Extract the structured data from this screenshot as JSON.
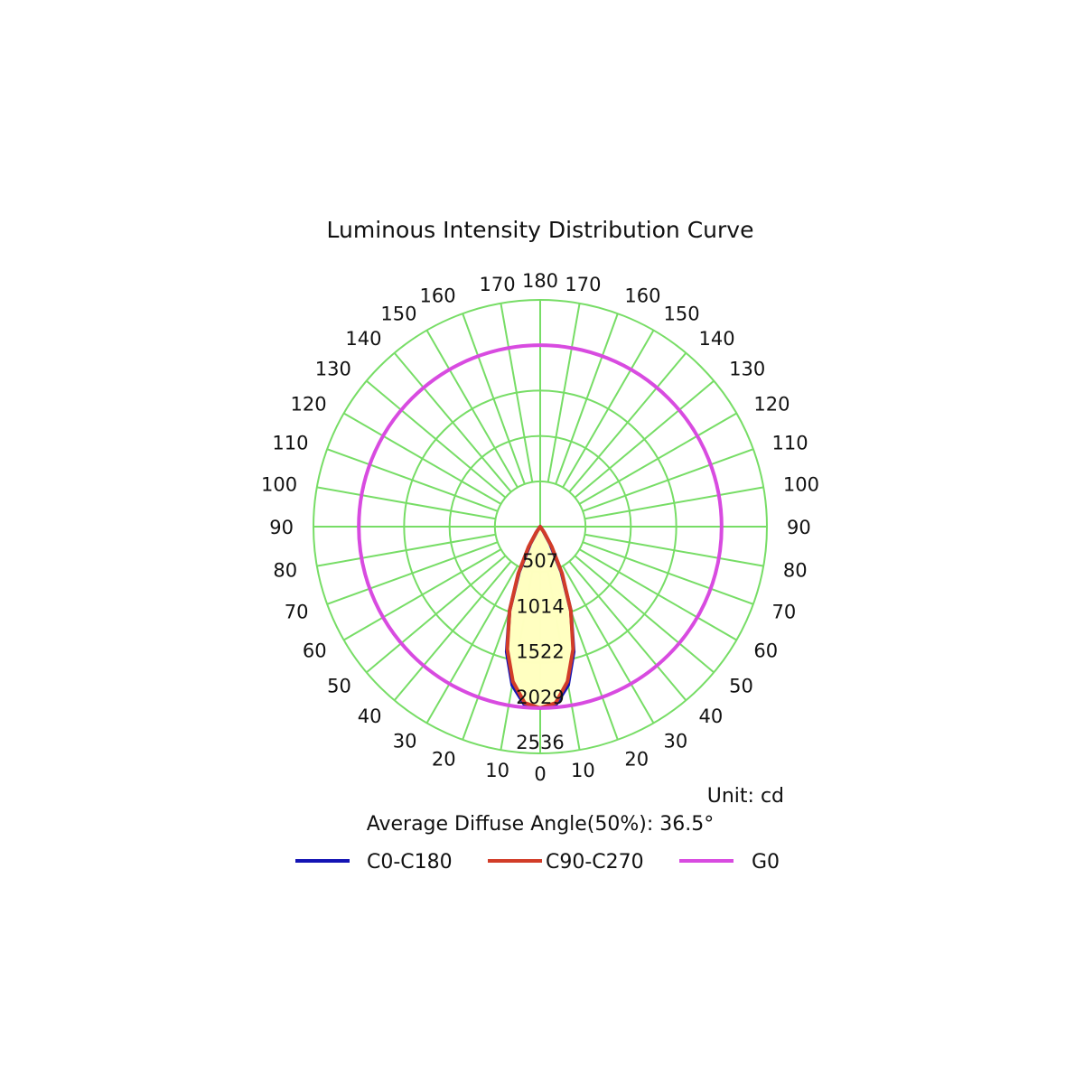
{
  "chart_data": {
    "type": "polar",
    "title": "Luminous Intensity Distribution Curve",
    "angles_left": [
      "0",
      "10",
      "20",
      "30",
      "40",
      "50",
      "60",
      "70",
      "80",
      "90",
      "100",
      "110",
      "120",
      "130",
      "140",
      "150",
      "160",
      "170",
      "180"
    ],
    "angles_right": [
      "10",
      "20",
      "30",
      "40",
      "50",
      "60",
      "70",
      "80",
      "90",
      "100",
      "110",
      "120",
      "130",
      "140",
      "150",
      "160",
      "170"
    ],
    "ring_labels": [
      "507",
      "1014",
      "1522",
      "2029",
      "2536"
    ],
    "rmax": 2536,
    "unit_text": "Unit: cd",
    "note": "Average Diffuse Angle(50%): 36.5°",
    "series": [
      {
        "name": "C0-C180",
        "color": "#1414b4",
        "angles": [
          0,
          5,
          10,
          15,
          20,
          25,
          30,
          35,
          40
        ],
        "left": [
          2029,
          2000,
          1800,
          1450,
          1000,
          560,
          220,
          60,
          0
        ],
        "right": [
          2029,
          2000,
          1800,
          1450,
          1000,
          560,
          220,
          60,
          0
        ]
      },
      {
        "name": "C90-C270",
        "color": "#d23c28",
        "angles": [
          0,
          5,
          10,
          15,
          20,
          25,
          30,
          35,
          40
        ],
        "left": [
          2029,
          1980,
          1760,
          1420,
          1000,
          580,
          260,
          80,
          0
        ],
        "right": [
          2029,
          1980,
          1760,
          1420,
          1000,
          580,
          260,
          80,
          0
        ]
      },
      {
        "name": "G0",
        "color": "#d84be0",
        "constant_r": 2029
      }
    ],
    "grid_color": "#77dd66",
    "fill_color": "#ffffc0"
  }
}
